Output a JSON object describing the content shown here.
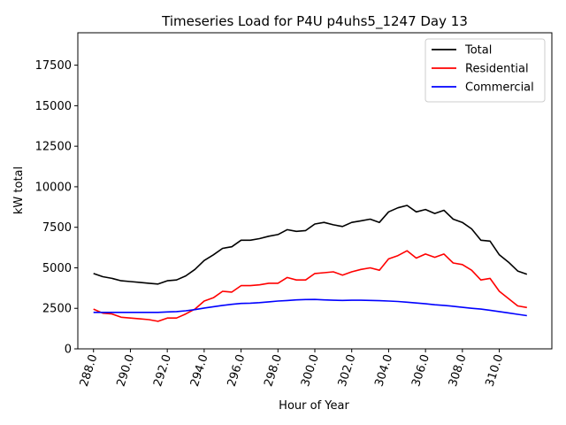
{
  "chart_data": {
    "type": "line",
    "title": "Timeseries Load for P4U p4uhs5_1247  Day 13",
    "xlabel": "Hour of Year",
    "ylabel": "kW total",
    "xlim": [
      287.15,
      312.85
    ],
    "ylim": [
      0,
      19500
    ],
    "xticks": [
      288,
      290,
      292,
      294,
      296,
      298,
      300,
      302,
      304,
      306,
      308,
      310
    ],
    "xtick_labels": [
      "288.0",
      "290.0",
      "292.0",
      "294.0",
      "296.0",
      "298.0",
      "300.0",
      "302.0",
      "304.0",
      "306.0",
      "308.0",
      "310.0"
    ],
    "yticks": [
      0,
      2500,
      5000,
      7500,
      10000,
      12500,
      15000,
      17500
    ],
    "ytick_labels": [
      "0",
      "2500",
      "5000",
      "7500",
      "10000",
      "12500",
      "15000",
      "17500"
    ],
    "legend_position": "top-right",
    "x": [
      288.0,
      288.5,
      289.0,
      289.5,
      290.0,
      290.5,
      291.0,
      291.5,
      292.0,
      292.5,
      293.0,
      293.5,
      294.0,
      294.5,
      295.0,
      295.5,
      296.0,
      296.5,
      297.0,
      297.5,
      298.0,
      298.5,
      299.0,
      299.5,
      300.0,
      300.5,
      301.0,
      301.5,
      302.0,
      302.5,
      303.0,
      303.5,
      304.0,
      304.5,
      305.0,
      305.5,
      306.0,
      306.5,
      307.0,
      307.5,
      308.0,
      308.5,
      309.0,
      309.5,
      310.0,
      310.5,
      311.0,
      311.5
    ],
    "series": [
      {
        "name": "Total",
        "color": "#000000",
        "values": [
          4650,
          4450,
          4350,
          4200,
          4150,
          4100,
          4050,
          4000,
          4200,
          4250,
          4500,
          4900,
          5450,
          5800,
          6200,
          6300,
          6700,
          6700,
          6800,
          6950,
          7050,
          7350,
          7250,
          7300,
          7700,
          7800,
          7650,
          7550,
          7800,
          7900,
          8000,
          7800,
          8450,
          8700,
          8850,
          8450,
          8600,
          8350,
          8550,
          8000,
          7800,
          7400,
          6700,
          6650,
          5800,
          5350,
          4800,
          4600
        ]
      },
      {
        "name": "Residential",
        "color": "#ff0000",
        "values": [
          2450,
          2200,
          2150,
          1950,
          1900,
          1850,
          1800,
          1700,
          1900,
          1900,
          2150,
          2450,
          2950,
          3150,
          3550,
          3500,
          3900,
          3900,
          3950,
          4050,
          4050,
          4400,
          4250,
          4250,
          4650,
          4700,
          4750,
          4550,
          4750,
          4900,
          5000,
          4850,
          5550,
          5750,
          6050,
          5600,
          5850,
          5650,
          5850,
          5300,
          5200,
          4850,
          4250,
          4350,
          3550,
          3100,
          2650,
          2550
        ]
      },
      {
        "name": "Commercial",
        "color": "#0000ff",
        "values": [
          2250,
          2250,
          2250,
          2250,
          2250,
          2250,
          2250,
          2250,
          2280,
          2300,
          2350,
          2420,
          2520,
          2600,
          2680,
          2750,
          2800,
          2820,
          2850,
          2900,
          2950,
          2980,
          3020,
          3040,
          3050,
          3020,
          3000,
          2990,
          3000,
          3000,
          2990,
          2970,
          2950,
          2920,
          2880,
          2830,
          2780,
          2720,
          2680,
          2630,
          2560,
          2500,
          2450,
          2380,
          2300,
          2220,
          2130,
          2050
        ]
      }
    ]
  }
}
